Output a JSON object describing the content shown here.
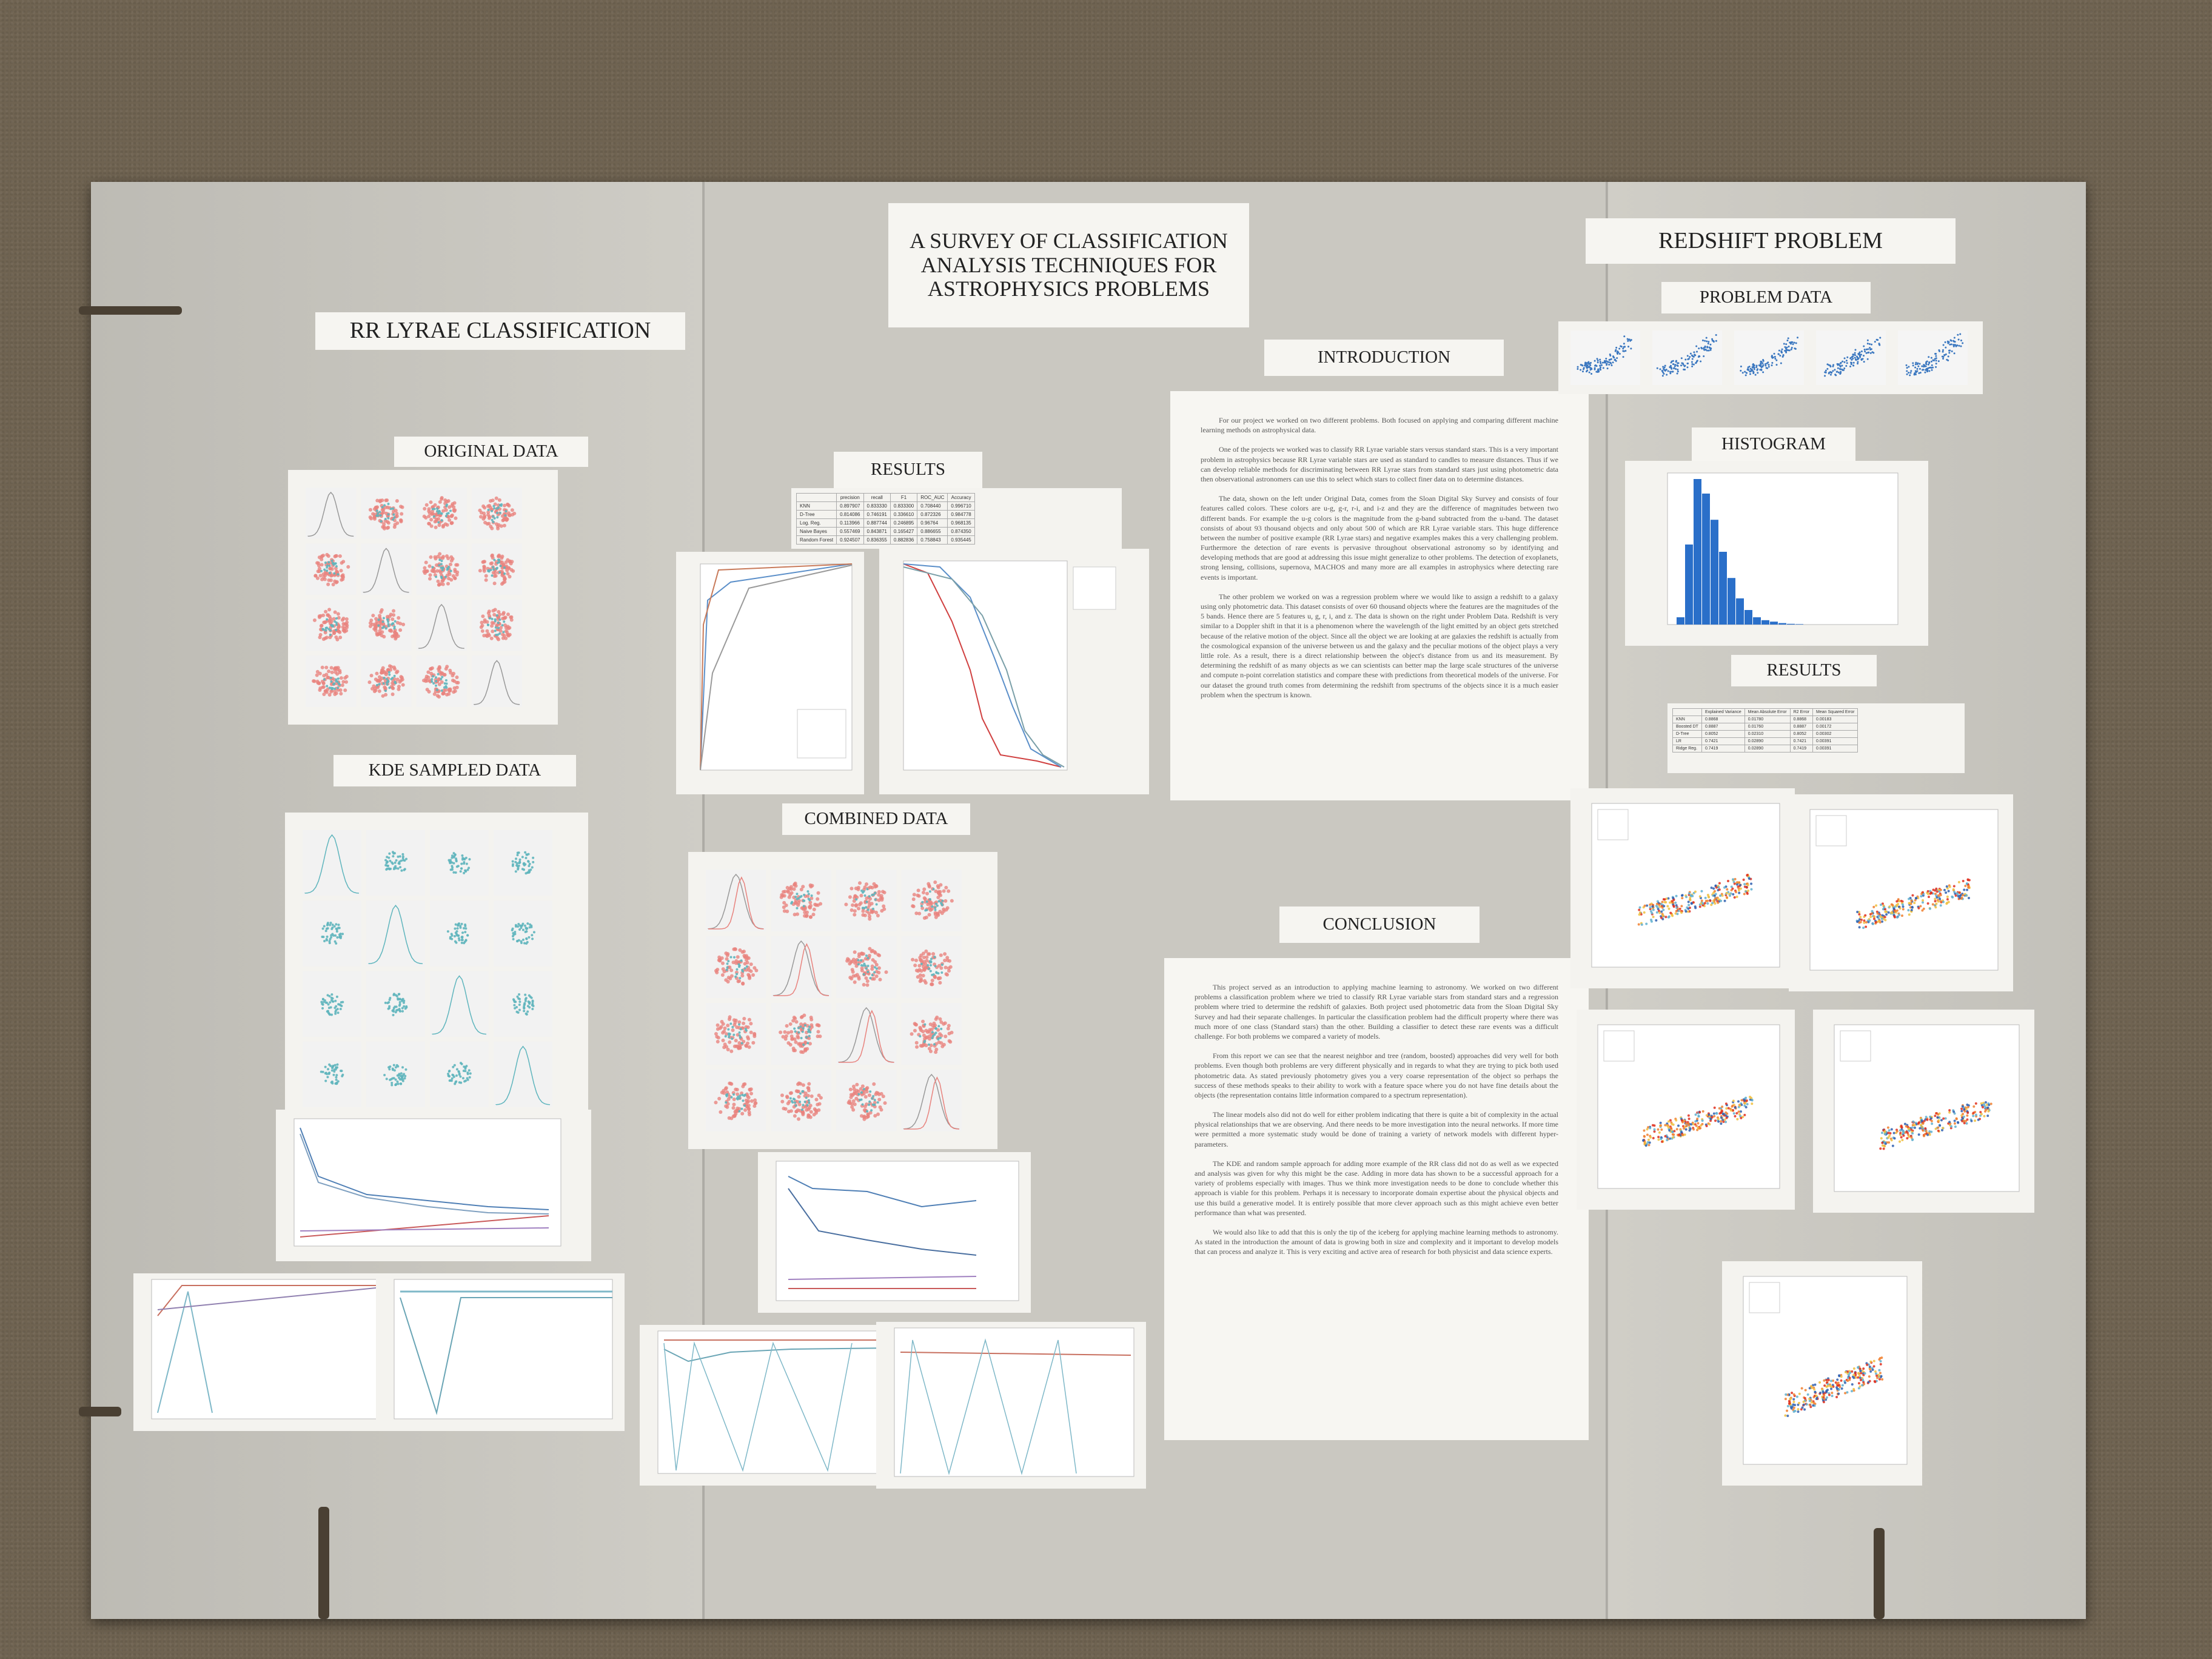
{
  "poster": {
    "title": "A SURVEY OF CLASSIFICATION ANALYSIS TECHNIQUES FOR ASTROPHYSICS PROBLEMS",
    "left_section": {
      "heading": "RR LYRAE CLASSIFICATION",
      "original_data": "ORIGINAL DATA",
      "kde_sampled_data": "KDE SAMPLED DATA"
    },
    "middle_section": {
      "results": "RESULTS",
      "combined_data": "COMBINED DATA",
      "introduction": "INTRODUCTION",
      "conclusion": "CONCLUSION"
    },
    "right_section": {
      "heading": "REDSHIFT PROBLEM",
      "problem_data": "PROBLEM DATA",
      "histogram": "HISTOGRAM",
      "results": "RESULTS"
    }
  },
  "colors": {
    "board": "#c9c7c0",
    "paper": "#f4f3ef",
    "scatter_red": "#e8837e",
    "scatter_teal": "#5fb5bd",
    "histogram_blue": "#2a6fc9",
    "carpet": "#6f6351"
  },
  "intro_paragraphs": [
    "For our project we worked on two different problems. Both focused on applying and comparing different machine learning methods on astrophysical data.",
    "One of the projects we worked was to classify RR Lyrae variable stars versus standard stars. This is a very important problem in astrophysics because RR Lyrae variable stars are used as standard to candles to measure distances. Thus if we can develop reliable methods for discriminating between RR Lyrae stars from standard stars just using photometric data then observational astronomers can use this to select which stars to collect finer data on to determine distances.",
    "The data, shown on the left under Original Data, comes from the Sloan Digital Sky Survey and consists of four features called colors. These colors are u-g, g-r, r-i, and i-z and they are the difference of magnitudes between two different bands. For example the u-g colors is the magnitude from the g-band subtracted from the u-band. The dataset consists of about 93 thousand objects and only about 500 of which are RR Lyrae variable stars. This huge difference between the number of positive example (RR Lyrae stars) and negative examples makes this a very challenging problem. Furthermore the detection of rare events is pervasive throughout observational astronomy so by identifying and developing methods that are good at addressing this issue might generalize to other problems. The detection of exoplanets, strong lensing, collisions, supernova, MACHOS and many more are all examples in astrophysics where detecting rare events is important.",
    "The other problem we worked on was a regression problem where we would like to assign a redshift to a galaxy using only photometric data. This dataset consists of over 60 thousand objects where the features are the magnitudes of the 5 bands. Hence there are 5 features u, g, r, i, and z. The data is shown on the right under Problem Data. Redshift is very similar to a Doppler shift in that it is a phenomenon where the wavelength of the light emitted by an object gets stretched because of the relative motion of the object. Since all the object we are looking at are galaxies the redshift is actually from the cosmological expansion of the universe between us and the galaxy and the peculiar motions of the object plays a very little role. As a result, there is a direct relationship between the object's distance from us and its measurement. By determining the redshift of as many objects as we can scientists can better map the large scale structures of the universe and compute n-point correlation statistics and compare these with predictions from theoretical models of the universe. For our dataset the ground truth comes from determining the redshift from spectrums of the objects since it is a much easier problem when the spectrum is known."
  ],
  "conclusion_paragraphs": [
    "This project served as an introduction to applying machine learning to astronomy. We worked on two different problems a classification problem where we tried to classify RR Lyrae variable stars from standard stars and a regression problem where tried to determine the redshift of galaxies. Both project used photometric data from the Sloan Digital Sky Survey and had their separate challenges. In particular the classification problem had the difficult property where there was much more of one class (Standard stars) than the other. Building a classifier to detect these rare events was a difficult challenge. For both problems we compared a variety of models.",
    "From this report we can see that the nearest neighbor and tree (random, boosted) approaches did very well for both problems. Even though both problems are very different physically and in regards to what they are trying to pick both used photometric data. As stated previously photometry gives you a very coarse representation of the object so perhaps the success of these methods speaks to their ability to work with a feature space where you do not have fine details about the objects (the representation contains little information compared to a spectrum representation).",
    "The linear models also did not do well for either problem indicating that there is quite a bit of complexity in the actual physical relationships that we are observing. And there needs to be more investigation into the neural networks. If more time were permitted a more systematic study would be done of training a variety of network models with different hyper-parameters.",
    "The KDE and random sample approach for adding more example of the RR class did not do as well as we expected and analysis was given for why this might be the case. Adding in more data has shown to be a successful approach for a variety of problems especially with images. Thus we think more investigation needs to be done to conclude whether this approach is viable for this problem. Perhaps it is necessary to incorporate domain expertise about the physical objects and use this build a generative model. It is entirely possible that more clever approach such as this might achieve even better performance than what was presented.",
    "We would also like to add that this is only the tip of the iceberg for applying machine learning methods to astronomy. As stated in the introduction the amount of data is growing both in size and complexity and it important to develop models that can process and analyze it. This is very exciting and active area of research for both physicist and data science experts."
  ],
  "results_table_rr": {
    "headers": [
      "",
      "precision",
      "recall",
      "F1",
      "ROC_AUC",
      "Accuracy"
    ],
    "rows": [
      [
        "KNN",
        "0.897907",
        "0.833330",
        "0.833300",
        "0.708440",
        "0.996710"
      ],
      [
        "D-Tree",
        "0.814086",
        "0.746191",
        "0.336610",
        "0.872326",
        "0.984778"
      ],
      [
        "Log. Reg.",
        "0.113966",
        "0.887744",
        "0.246895",
        "0.96764",
        "0.968135"
      ],
      [
        "Naive Bayes",
        "0.557469",
        "0.843871",
        "0.165427",
        "0.886655",
        "0.874350"
      ],
      [
        "Random Forest",
        "0.924507",
        "0.836355",
        "0.882836",
        "0.758843",
        "0.935445"
      ]
    ]
  },
  "results_table_redshift": {
    "headers": [
      "",
      "Explained Variance",
      "Mean Absolute Error",
      "R2 Error",
      "Mean Squared Error"
    ],
    "rows": [
      [
        "KNN",
        "0.8868",
        "0.01780",
        "0.8868",
        "0.00183"
      ],
      [
        "Boosted DT",
        "0.8887",
        "0.01760",
        "0.8887",
        "0.00172"
      ],
      [
        "D-Tree",
        "0.8052",
        "0.02310",
        "0.8052",
        "0.00302"
      ],
      [
        "LR",
        "0.7421",
        "0.02890",
        "0.7421",
        "0.00391"
      ],
      [
        "Ridge Reg.",
        "0.7419",
        "0.02890",
        "0.7419",
        "0.00391"
      ]
    ]
  }
}
